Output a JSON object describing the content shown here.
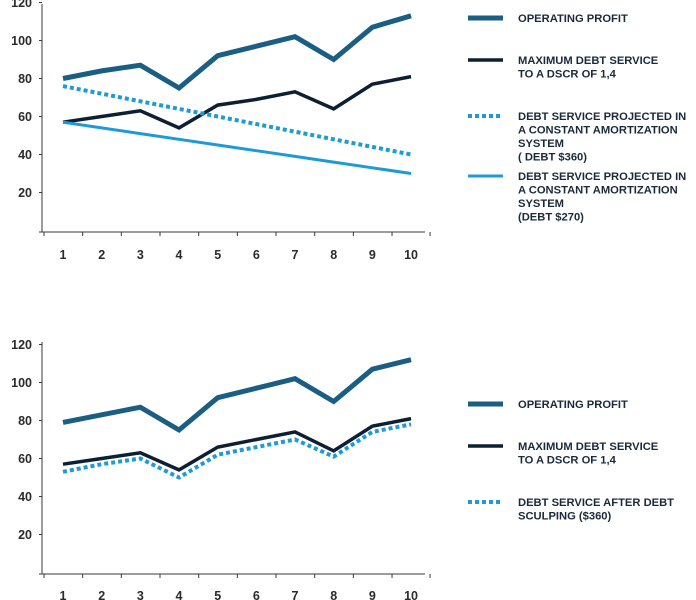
{
  "colors": {
    "operating_profit": "#1b5e83",
    "max_debt_service": "#0d1f33",
    "debt_service_blue": "#1e9ad6",
    "axis": "#3a3a3a"
  },
  "chart_data": [
    {
      "type": "line",
      "x": [
        1,
        2,
        3,
        4,
        5,
        6,
        7,
        8,
        9,
        10
      ],
      "xticks": [
        "1",
        "2",
        "3",
        "4",
        "5",
        "6",
        "7",
        "8",
        "9",
        "10"
      ],
      "yticks": [
        "20",
        "40",
        "60",
        "80",
        "100",
        "120"
      ],
      "ylim": [
        0,
        120
      ],
      "legend_position": "right",
      "series": [
        {
          "name": "OPERATING PROFIT",
          "values": [
            80,
            84,
            87,
            75,
            92,
            97,
            102,
            90,
            107,
            113
          ],
          "style": "solid-thick"
        },
        {
          "name": "MAXIMUM DEBT SERVICE TO A DSCR OF 1,4",
          "values": [
            57,
            60,
            63,
            54,
            66,
            69,
            73,
            64,
            77,
            81
          ],
          "style": "solid"
        },
        {
          "name": "DEBT SERVICE PROJECTED IN A CONSTANT AMORTIZATION SYSTEM ( DEBT $360)",
          "values": [
            76,
            72,
            68,
            64,
            60,
            56,
            52,
            48,
            44,
            40
          ],
          "style": "dotted"
        },
        {
          "name": "DEBT SERVICE PROJECTED IN A CONSTANT AMORTIZATION SYSTEM (DEBT $270)",
          "values": [
            57,
            54,
            51,
            48,
            45,
            42,
            39,
            36,
            33,
            30
          ],
          "style": "solid-light"
        }
      ],
      "legend": [
        {
          "lines": [
            "OPERATING PROFIT"
          ]
        },
        {
          "lines": [
            "MAXIMUM DEBT SERVICE",
            "TO A DSCR OF 1,4"
          ]
        },
        {
          "lines": [
            "DEBT SERVICE PROJECTED IN",
            "A CONSTANT AMORTIZATION",
            "SYSTEM",
            "( DEBT $360)"
          ]
        },
        {
          "lines": [
            "DEBT SERVICE PROJECTED IN",
            "A CONSTANT AMORTIZATION",
            "SYSTEM",
            "(DEBT $270)"
          ]
        }
      ]
    },
    {
      "type": "line",
      "x": [
        1,
        2,
        3,
        4,
        5,
        6,
        7,
        8,
        9,
        10
      ],
      "xticks": [
        "1",
        "2",
        "3",
        "4",
        "5",
        "6",
        "7",
        "8",
        "9",
        "10"
      ],
      "yticks": [
        "20",
        "40",
        "60",
        "80",
        "100",
        "120"
      ],
      "ylim": [
        0,
        120
      ],
      "legend_position": "right",
      "series": [
        {
          "name": "OPERATING PROFIT",
          "values": [
            79,
            83,
            87,
            75,
            92,
            97,
            102,
            90,
            107,
            112
          ],
          "style": "solid-thick"
        },
        {
          "name": "MAXIMUM DEBT SERVICE TO A DSCR OF 1,4",
          "values": [
            57,
            60,
            63,
            54,
            66,
            70,
            74,
            64,
            77,
            81
          ],
          "style": "solid"
        },
        {
          "name": "DEBT SERVICE AFTER DEBT SCULPING ($360)",
          "values": [
            53,
            57,
            60,
            50,
            62,
            66,
            70,
            61,
            74,
            78
          ],
          "style": "dotted"
        }
      ],
      "legend": [
        {
          "lines": [
            "OPERATING PROFIT"
          ]
        },
        {
          "lines": [
            "MAXIMUM DEBT SERVICE",
            "TO A DSCR OF 1,4"
          ]
        },
        {
          "lines": [
            "DEBT SERVICE AFTER DEBT",
            "SCULPING ($360)"
          ]
        }
      ]
    }
  ]
}
